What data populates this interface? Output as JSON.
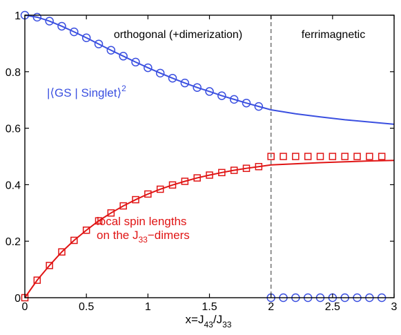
{
  "chart_data": {
    "type": "line",
    "xlabel": {
      "base": "x=J",
      "sub1": "43",
      "mid": "/J",
      "sub2": "33"
    },
    "xlim": [
      0,
      3
    ],
    "ylim": [
      0,
      1
    ],
    "xticks": [
      "0",
      "0.5",
      "1",
      "1.5",
      "2",
      "2.5",
      "3"
    ],
    "yticks": [
      "0",
      "0.2",
      "0.4",
      "0.6",
      "0.8",
      "1"
    ],
    "grid": false,
    "phase_boundary_x": 2,
    "regions": {
      "left": "orthogonal (+dimerization)",
      "right": "ferrimagnetic"
    },
    "colors": {
      "blue": "#3a4fe0",
      "red": "#e01414",
      "boundary": "#777777",
      "axis": "#000000"
    },
    "series": [
      {
        "label_main": "|⟨GS | Singlet⟩",
        "label_sup": "2",
        "color": "#3a4fe0",
        "marker": "circle",
        "line_x": [
          0,
          0.1,
          0.2,
          0.3,
          0.4,
          0.5,
          0.6,
          0.7,
          0.8,
          0.9,
          1.0,
          1.1,
          1.2,
          1.3,
          1.4,
          1.5,
          1.6,
          1.7,
          1.8,
          1.9,
          2.0,
          2.2,
          2.4,
          2.6,
          2.8,
          3.0
        ],
        "line_y": [
          1.0,
          0.993,
          0.979,
          0.961,
          0.941,
          0.92,
          0.898,
          0.876,
          0.855,
          0.834,
          0.814,
          0.795,
          0.777,
          0.76,
          0.744,
          0.73,
          0.715,
          0.702,
          0.689,
          0.677,
          0.665,
          0.651,
          0.64,
          0.63,
          0.622,
          0.614
        ],
        "marker_x": [
          0,
          0.1,
          0.2,
          0.3,
          0.4,
          0.5,
          0.6,
          0.7,
          0.8,
          0.9,
          1.0,
          1.1,
          1.2,
          1.3,
          1.4,
          1.5,
          1.6,
          1.7,
          1.8,
          1.9,
          2.0,
          2.1,
          2.2,
          2.3,
          2.4,
          2.5,
          2.6,
          2.7,
          2.8,
          2.9
        ],
        "marker_y": [
          1.0,
          0.993,
          0.979,
          0.961,
          0.941,
          0.92,
          0.898,
          0.876,
          0.855,
          0.834,
          0.814,
          0.795,
          0.777,
          0.76,
          0.744,
          0.73,
          0.715,
          0.702,
          0.689,
          0.677,
          0,
          0,
          0,
          0,
          0,
          0,
          0,
          0,
          0,
          0
        ]
      },
      {
        "label_line1": "local spin lengths",
        "label_line2_pre": "on the J",
        "label_line2_sub": "33",
        "label_line2_post": "−dimers",
        "color": "#e01414",
        "marker": "square",
        "line_x": [
          0,
          0.1,
          0.2,
          0.3,
          0.4,
          0.5,
          0.6,
          0.7,
          0.8,
          0.9,
          1.0,
          1.1,
          1.2,
          1.3,
          1.4,
          1.5,
          1.6,
          1.7,
          1.8,
          1.9,
          2.0,
          2.2,
          2.4,
          2.6,
          2.8,
          3.0
        ],
        "line_y": [
          0.0,
          0.062,
          0.114,
          0.162,
          0.203,
          0.239,
          0.272,
          0.3,
          0.325,
          0.347,
          0.367,
          0.384,
          0.399,
          0.412,
          0.424,
          0.434,
          0.443,
          0.451,
          0.458,
          0.464,
          0.47,
          0.474,
          0.478,
          0.481,
          0.484,
          0.486
        ],
        "marker_x": [
          0,
          0.1,
          0.2,
          0.3,
          0.4,
          0.5,
          0.6,
          0.7,
          0.8,
          0.9,
          1.0,
          1.1,
          1.2,
          1.3,
          1.4,
          1.5,
          1.6,
          1.7,
          1.8,
          1.9,
          2.0,
          2.1,
          2.2,
          2.3,
          2.4,
          2.5,
          2.6,
          2.7,
          2.8,
          2.9
        ],
        "marker_y": [
          0.0,
          0.062,
          0.114,
          0.162,
          0.203,
          0.239,
          0.272,
          0.3,
          0.325,
          0.347,
          0.367,
          0.384,
          0.399,
          0.412,
          0.424,
          0.434,
          0.443,
          0.451,
          0.458,
          0.464,
          0.5,
          0.5,
          0.5,
          0.5,
          0.5,
          0.5,
          0.5,
          0.5,
          0.5,
          0.5
        ]
      }
    ]
  }
}
